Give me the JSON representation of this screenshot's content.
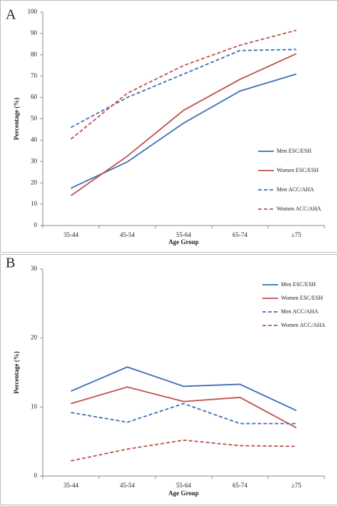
{
  "chart_data": [
    {
      "type": "line",
      "panel_label": "A",
      "x_label": "Age Group",
      "y_label": "Percentage (%)",
      "categories": [
        "35-44",
        "45-54",
        "55-64",
        "65-74",
        "≥75"
      ],
      "ylim": [
        0,
        100
      ],
      "yticks": [
        0,
        10,
        20,
        30,
        40,
        50,
        60,
        70,
        80,
        90,
        100
      ],
      "grid": false,
      "series": [
        {
          "name": "Men ESC/ESH",
          "color": "#3c6eb4",
          "dashed": false,
          "values": [
            17.5,
            29.8,
            48,
            63,
            71
          ]
        },
        {
          "name": "Women ESC/ESH",
          "color": "#c0504d",
          "dashed": false,
          "values": [
            14,
            32.5,
            54,
            68.5,
            80.5
          ]
        },
        {
          "name": "Men ACC/AHA",
          "color": "#3c6eb4",
          "dashed": true,
          "values": [
            46,
            60,
            71,
            82,
            82.5
          ]
        },
        {
          "name": "Women ACC/AHA",
          "color": "#c0504d",
          "dashed": true,
          "values": [
            40.5,
            62,
            75,
            84.5,
            91.5
          ]
        }
      ]
    },
    {
      "type": "line",
      "panel_label": "B",
      "x_label": "Age Group",
      "y_label": "Percentage (%)",
      "categories": [
        "35-44",
        "45-54",
        "55-64",
        "65-74",
        "≥75"
      ],
      "ylim": [
        0,
        30
      ],
      "yticks": [
        0,
        10,
        20,
        30
      ],
      "grid": false,
      "series": [
        {
          "name": "Men ESC/ESH",
          "color": "#3c6eb4",
          "dashed": false,
          "values": [
            12.3,
            15.8,
            13,
            13.3,
            9.5
          ]
        },
        {
          "name": "Women ESC/ESH",
          "color": "#c0504d",
          "dashed": false,
          "values": [
            10.5,
            12.9,
            10.8,
            11.4,
            7.0
          ]
        },
        {
          "name": "Men ACC/AHA",
          "color": "#3c6eb4",
          "dashed": true,
          "values": [
            9.2,
            7.8,
            10.5,
            7.6,
            7.6
          ]
        },
        {
          "name": "Women ACC/AHA",
          "color": "#c0504d",
          "dashed": true,
          "values": [
            2.2,
            3.9,
            5.2,
            4.4,
            4.3
          ]
        }
      ]
    }
  ]
}
